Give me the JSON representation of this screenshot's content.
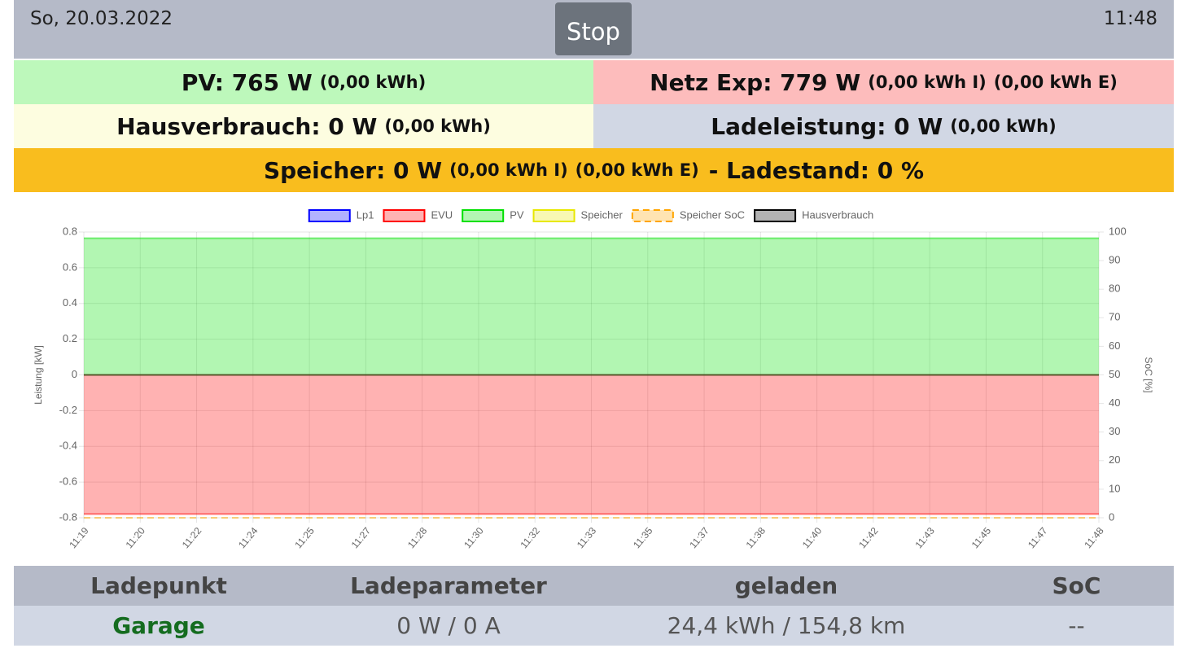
{
  "header": {
    "date": "So, 20.03.2022",
    "button": "Stop",
    "time": "11:48"
  },
  "summary": {
    "pv": {
      "label": "PV: 765 W",
      "details": [
        "(0,00 kWh)"
      ]
    },
    "netz": {
      "label": "Netz Exp: 779 W",
      "details": [
        "(0,00 kWh I)",
        "(0,00 kWh E)"
      ]
    },
    "haus": {
      "label": "Hausverbrauch: 0 W",
      "details": [
        "(0,00 kWh)"
      ]
    },
    "lade": {
      "label": "Ladeleistung: 0 W",
      "details": [
        "(0,00 kWh)"
      ]
    },
    "speicher": {
      "label": "Speicher: 0 W",
      "details": [
        "(0,00 kWh I)",
        "(0,00 kWh E)"
      ],
      "soc": "- Ladestand: 0 %"
    }
  },
  "chart_data": {
    "type": "area",
    "ylabel": "Leistung [kW]",
    "y2label": "SoC [%]",
    "categories": [
      "11:19",
      "11:20",
      "11:22",
      "11:24",
      "11:25",
      "11:27",
      "11:28",
      "11:30",
      "11:32",
      "11:33",
      "11:35",
      "11:37",
      "11:38",
      "11:40",
      "11:42",
      "11:43",
      "11:45",
      "11:47",
      "11:48"
    ],
    "ylim": [
      -0.8,
      0.8
    ],
    "yticks": [
      -0.8,
      -0.6,
      -0.4,
      -0.2,
      0,
      0.2,
      0.4,
      0.6,
      0.8
    ],
    "y2lim": [
      0,
      100
    ],
    "y2ticks": [
      0,
      10,
      20,
      30,
      40,
      50,
      60,
      70,
      80,
      90,
      100
    ],
    "grid": true,
    "legend": "top",
    "series": [
      {
        "name": "Lp1",
        "color": "#0000ff",
        "values": [
          0,
          0,
          0,
          0,
          0,
          0,
          0,
          0,
          0,
          0,
          0,
          0,
          0,
          0,
          0,
          0,
          0,
          0,
          0
        ]
      },
      {
        "name": "EVU",
        "color": "#ff0000",
        "values": [
          -0.779,
          -0.779,
          -0.779,
          -0.779,
          -0.779,
          -0.779,
          -0.779,
          -0.779,
          -0.779,
          -0.779,
          -0.779,
          -0.779,
          -0.779,
          -0.779,
          -0.779,
          -0.779,
          -0.779,
          -0.779,
          -0.779
        ]
      },
      {
        "name": "PV",
        "color": "#00e000",
        "values": [
          0.765,
          0.765,
          0.765,
          0.765,
          0.765,
          0.765,
          0.765,
          0.765,
          0.765,
          0.765,
          0.765,
          0.765,
          0.765,
          0.765,
          0.765,
          0.765,
          0.765,
          0.765,
          0.765
        ]
      },
      {
        "name": "Speicher",
        "color": "#e8e800",
        "values": [
          0,
          0,
          0,
          0,
          0,
          0,
          0,
          0,
          0,
          0,
          0,
          0,
          0,
          0,
          0,
          0,
          0,
          0,
          0
        ]
      },
      {
        "name": "Speicher SoC",
        "color": "#ffa500",
        "dashed": true,
        "axis": "y2",
        "values": [
          0,
          0,
          0,
          0,
          0,
          0,
          0,
          0,
          0,
          0,
          0,
          0,
          0,
          0,
          0,
          0,
          0,
          0,
          0
        ]
      },
      {
        "name": "Hausverbrauch",
        "color": "#000000",
        "values": [
          0,
          0,
          0,
          0,
          0,
          0,
          0,
          0,
          0,
          0,
          0,
          0,
          0,
          0,
          0,
          0,
          0,
          0,
          0
        ]
      }
    ]
  },
  "table": {
    "columns": [
      "Ladepunkt",
      "Ladeparameter",
      "geladen",
      "SoC"
    ],
    "rows": [
      [
        "Garage",
        "0 W / 0 A",
        "24,4 kWh / 154,8 km",
        "--"
      ]
    ]
  }
}
